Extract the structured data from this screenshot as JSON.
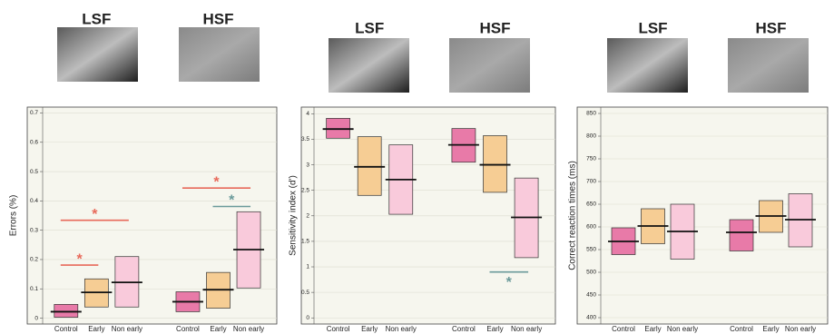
{
  "chart_data": [
    {
      "type": "interval",
      "groups": [
        "LSF",
        "HSF"
      ],
      "ylabel": "Errors (%)",
      "ylim": [
        -0.02,
        0.72
      ],
      "yticks": [
        0,
        0.1,
        0.2,
        0.3,
        0.4,
        0.5,
        0.6,
        0.7
      ],
      "series": [
        {
          "name": "Control",
          "color": "#e87aa8",
          "low": [
            0.003,
            0.022
          ],
          "high": [
            0.047,
            0.09
          ],
          "mean": [
            0.022,
            0.056
          ]
        },
        {
          "name": "Early",
          "color": "#f6cd94",
          "low": [
            0.038,
            0.034
          ],
          "high": [
            0.134,
            0.156
          ],
          "mean": [
            0.088,
            0.097
          ]
        },
        {
          "name": "Non early",
          "color": "#f9cadb",
          "low": [
            0.038,
            0.103
          ],
          "high": [
            0.21,
            0.363
          ],
          "mean": [
            0.122,
            0.234
          ]
        }
      ],
      "annotations": [
        {
          "group": 0,
          "from": 0,
          "to": 2,
          "y": 0.334,
          "label": "*",
          "color": "#e8695a"
        },
        {
          "group": 0,
          "from": 0,
          "to": 1,
          "y": 0.181,
          "label": "*",
          "color": "#e8695a"
        },
        {
          "group": 1,
          "from": 0,
          "to": 2,
          "y": 0.444,
          "label": "*",
          "color": "#e8695a"
        },
        {
          "group": 1,
          "from": 1,
          "to": 2,
          "y": 0.381,
          "label": "*",
          "color": "#6a9a9a"
        }
      ]
    },
    {
      "type": "interval",
      "groups": [
        "LSF",
        "HSF"
      ],
      "ylabel": "Sensitivity index (d')",
      "ylim": [
        -0.12,
        4.13
      ],
      "yticks": [
        0,
        0.5,
        1,
        1.5,
        2,
        2.5,
        3,
        3.5,
        4
      ],
      "series": [
        {
          "name": "Control",
          "color": "#e87aa8",
          "low": [
            3.52,
            3.05
          ],
          "high": [
            3.91,
            3.71
          ],
          "mean": [
            3.7,
            3.39
          ]
        },
        {
          "name": "Early",
          "color": "#f6cd94",
          "low": [
            2.4,
            2.46
          ],
          "high": [
            3.55,
            3.57
          ],
          "mean": [
            2.96,
            3.0
          ]
        },
        {
          "name": "Non early",
          "color": "#f9cadb",
          "low": [
            2.03,
            1.18
          ],
          "high": [
            3.39,
            2.74
          ],
          "mean": [
            2.71,
            1.97
          ]
        }
      ],
      "annotations": [
        {
          "group": 1,
          "from": 1,
          "to": 2,
          "y": 0.9,
          "label": "*",
          "color": "#6a9a9a",
          "below": true
        }
      ]
    },
    {
      "type": "interval",
      "groups": [
        "LSF",
        "HSF"
      ],
      "ylabel": "Correct reaction times (ms)",
      "ylim": [
        386,
        864
      ],
      "yticks": [
        400,
        450,
        500,
        550,
        600,
        650,
        700,
        750,
        800,
        850
      ],
      "series": [
        {
          "name": "Control",
          "color": "#e87aa8",
          "low": [
            539,
            547
          ],
          "high": [
            598,
            616
          ],
          "mean": [
            568,
            588
          ]
        },
        {
          "name": "Early",
          "color": "#f6cd94",
          "low": [
            563,
            588
          ],
          "high": [
            640,
            658
          ],
          "mean": [
            602,
            624
          ]
        },
        {
          "name": "Non early",
          "color": "#f9cadb",
          "low": [
            529,
            556
          ],
          "high": [
            650,
            673
          ],
          "mean": [
            590,
            616
          ]
        }
      ],
      "annotations": []
    }
  ]
}
